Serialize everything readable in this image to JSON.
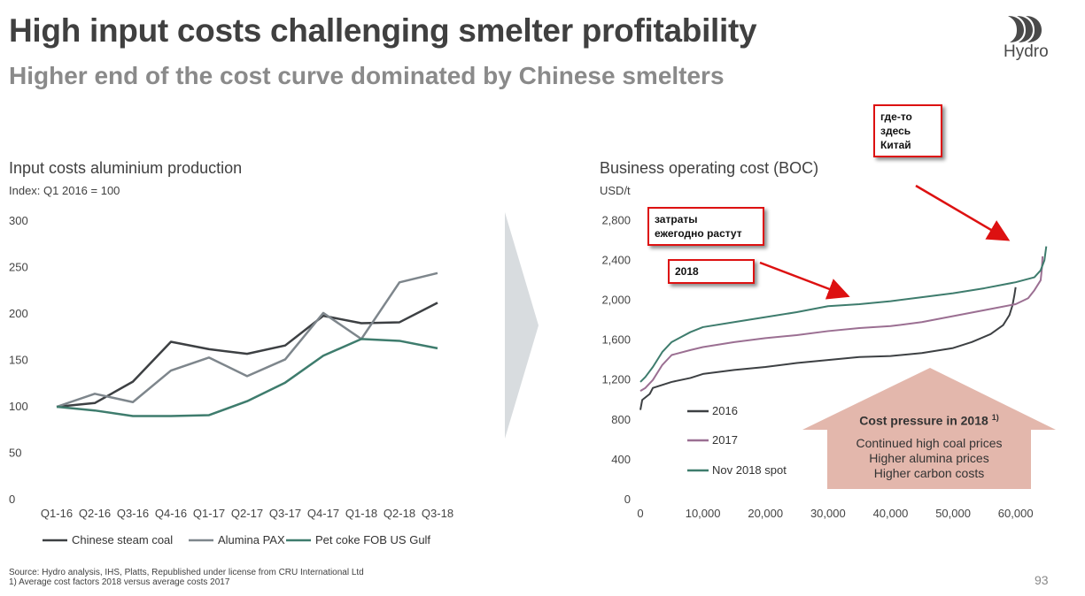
{
  "header": {
    "title": "High input costs challenging smelter profitability",
    "subtitle": "Higher end of the cost curve dominated by Chinese smelters",
    "logo_text": "Hydro"
  },
  "colors": {
    "chinese_coal": "#3d4043",
    "alumina": "#7e868c",
    "petcoke": "#3e7c6d",
    "boc_2016": "#3d4043",
    "boc_2017": "#9b6f92",
    "boc_nov2018": "#3e7c6d",
    "arrow_gray": "#d8dcdf",
    "callout_fill": "#e3b7ac",
    "annotation_red": "#dd1111"
  },
  "chart_data": [
    {
      "type": "line",
      "title": "Input costs aluminium production",
      "subtitle": "Index: Q1 2016 = 100",
      "categories": [
        "Q1-16",
        "Q2-16",
        "Q3-16",
        "Q4-16",
        "Q1-17",
        "Q2-17",
        "Q3-17",
        "Q4-17",
        "Q1-18",
        "Q2-18",
        "Q3-18"
      ],
      "yticks": [
        "0",
        "50",
        "100",
        "150",
        "200",
        "250",
        "300"
      ],
      "ylim": [
        0,
        300
      ],
      "grid": false,
      "legend_position": "bottom",
      "series": [
        {
          "name": "Chinese steam coal",
          "values": [
            100,
            104,
            127,
            170,
            162,
            157,
            166,
            198,
            190,
            191,
            212
          ]
        },
        {
          "name": "Alumina PAX",
          "values": [
            100,
            114,
            105,
            139,
            153,
            133,
            151,
            201,
            173,
            234,
            244
          ]
        },
        {
          "name": "Pet coke FOB US Gulf",
          "values": [
            100,
            96,
            90,
            90,
            91,
            106,
            126,
            155,
            173,
            171,
            163
          ]
        }
      ]
    },
    {
      "type": "line",
      "title": "Business operating cost (BOC)",
      "ylabel": "USD/t",
      "xticks": [
        "0",
        "10,000",
        "20,000",
        "30,000",
        "40,000",
        "50,000",
        "60,000"
      ],
      "yticks": [
        "0",
        "400",
        "800",
        "1,200",
        "1,600",
        "2,000",
        "2,400",
        "2,800"
      ],
      "xlim": [
        0,
        65000
      ],
      "ylim": [
        0,
        2900
      ],
      "grid": false,
      "legend_position": "bottom-left",
      "series": [
        {
          "name": "2016",
          "points": [
            [
              0,
              900
            ],
            [
              300,
              1000
            ],
            [
              1500,
              1060
            ],
            [
              2000,
              1120
            ],
            [
              3500,
              1150
            ],
            [
              5000,
              1180
            ],
            [
              8000,
              1220
            ],
            [
              10000,
              1260
            ],
            [
              15000,
              1300
            ],
            [
              20000,
              1330
            ],
            [
              25000,
              1370
            ],
            [
              30000,
              1400
            ],
            [
              35000,
              1430
            ],
            [
              40000,
              1440
            ],
            [
              45000,
              1470
            ],
            [
              50000,
              1520
            ],
            [
              53000,
              1580
            ],
            [
              56000,
              1660
            ],
            [
              58000,
              1750
            ],
            [
              59000,
              1850
            ],
            [
              59500,
              1950
            ],
            [
              59800,
              2050
            ],
            [
              60000,
              2130
            ]
          ]
        },
        {
          "name": "2017",
          "points": [
            [
              0,
              1090
            ],
            [
              800,
              1120
            ],
            [
              2000,
              1200
            ],
            [
              3500,
              1350
            ],
            [
              5000,
              1450
            ],
            [
              8000,
              1500
            ],
            [
              10000,
              1530
            ],
            [
              15000,
              1580
            ],
            [
              20000,
              1620
            ],
            [
              25000,
              1650
            ],
            [
              30000,
              1690
            ],
            [
              35000,
              1720
            ],
            [
              40000,
              1740
            ],
            [
              45000,
              1780
            ],
            [
              50000,
              1840
            ],
            [
              55000,
              1900
            ],
            [
              60000,
              1960
            ],
            [
              62000,
              2020
            ],
            [
              63000,
              2100
            ],
            [
              64000,
              2200
            ],
            [
              64200,
              2320
            ],
            [
              64300,
              2440
            ]
          ]
        },
        {
          "name": "Nov 2018 spot",
          "points": [
            [
              0,
              1180
            ],
            [
              800,
              1230
            ],
            [
              2000,
              1330
            ],
            [
              3500,
              1480
            ],
            [
              5000,
              1580
            ],
            [
              8000,
              1680
            ],
            [
              10000,
              1730
            ],
            [
              15000,
              1780
            ],
            [
              20000,
              1830
            ],
            [
              25000,
              1880
            ],
            [
              30000,
              1940
            ],
            [
              35000,
              1960
            ],
            [
              40000,
              1990
            ],
            [
              45000,
              2030
            ],
            [
              50000,
              2070
            ],
            [
              55000,
              2120
            ],
            [
              60000,
              2180
            ],
            [
              63000,
              2230
            ],
            [
              64000,
              2300
            ],
            [
              64600,
              2400
            ],
            [
              64900,
              2540
            ]
          ]
        }
      ]
    }
  ],
  "callout": {
    "heading": "Cost pressure in 2018",
    "heading_sup": "1)",
    "lines": [
      "Continued high coal prices",
      "Higher alumina prices",
      "Higher carbon costs"
    ]
  },
  "annotations": {
    "china": "где-то\nздесь\nКитай",
    "costs_grow": "затраты\nежегодно растут",
    "year_2018": "2018"
  },
  "footer": {
    "source": "Source: Hydro analysis, IHS, Platts, Republished under license from CRU International Ltd",
    "note": "1) Average cost factors 2018 versus average costs 2017",
    "page": "93"
  }
}
